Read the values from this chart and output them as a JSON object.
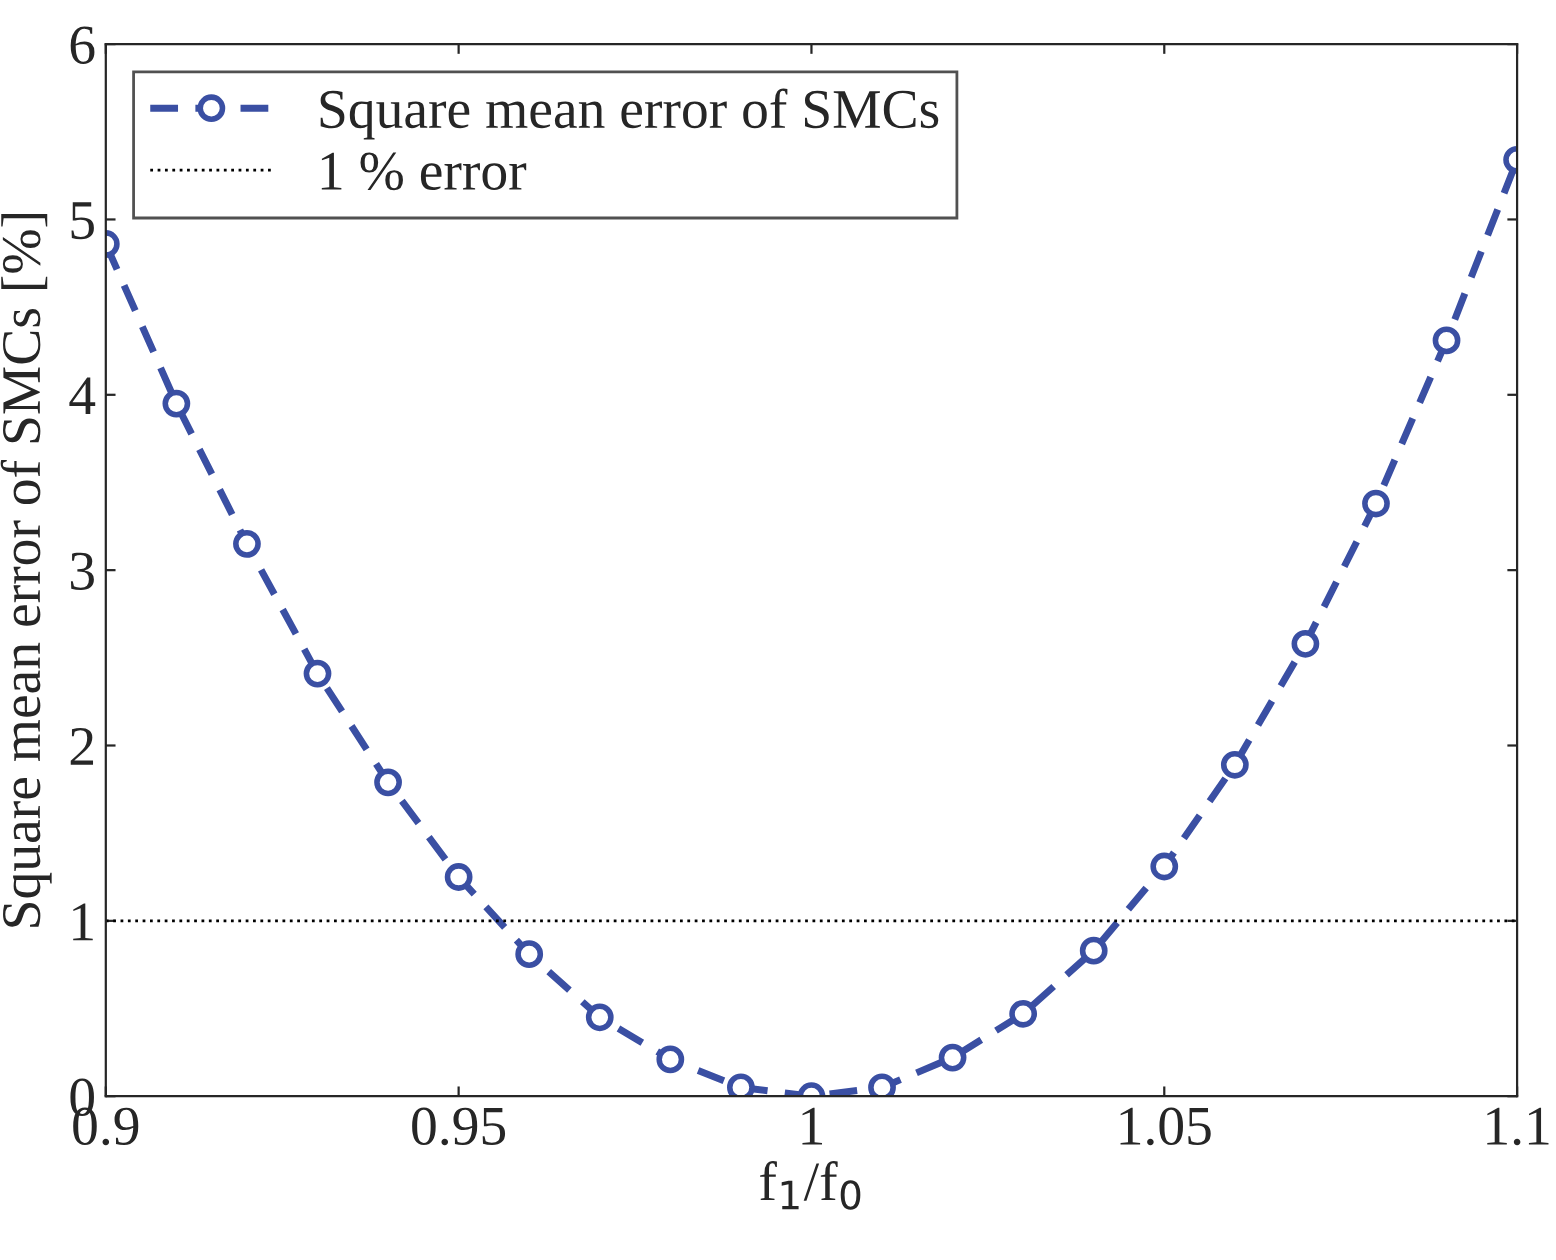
{
  "chart_data": {
    "type": "line",
    "xlabel": "f$_{1}$/f$_{0}$",
    "ylabel": "Square mean error of SMCs [%]",
    "x": [
      0.9,
      0.91,
      0.92,
      0.93,
      0.94,
      0.95,
      0.96,
      0.97,
      0.98,
      0.99,
      1.0,
      1.01,
      1.02,
      1.03,
      1.04,
      1.05,
      1.06,
      1.07,
      1.08,
      1.09,
      1.1
    ],
    "series": [
      {
        "name": "Square mean error of SMCs",
        "color": "#3a4fa3",
        "values": [
          4.86,
          3.95,
          3.15,
          2.41,
          1.79,
          1.25,
          0.81,
          0.45,
          0.21,
          0.05,
          0.0,
          0.05,
          0.22,
          0.47,
          0.83,
          1.31,
          1.89,
          2.58,
          3.38,
          4.31,
          5.34
        ]
      }
    ],
    "marker": "circle",
    "line_style": "dashed",
    "ref_lines": [
      {
        "axis": "y",
        "value": 1,
        "label": "1 % error",
        "color": "#000000",
        "line_style": "dotted"
      }
    ],
    "xlim": [
      0.9,
      1.1
    ],
    "ylim": [
      0,
      6
    ],
    "xticks": [
      0.9,
      0.95,
      1,
      1.05,
      1.1
    ],
    "yticks": [
      0,
      1,
      2,
      3,
      4,
      5,
      6
    ],
    "grid": false,
    "legend": "top left"
  }
}
